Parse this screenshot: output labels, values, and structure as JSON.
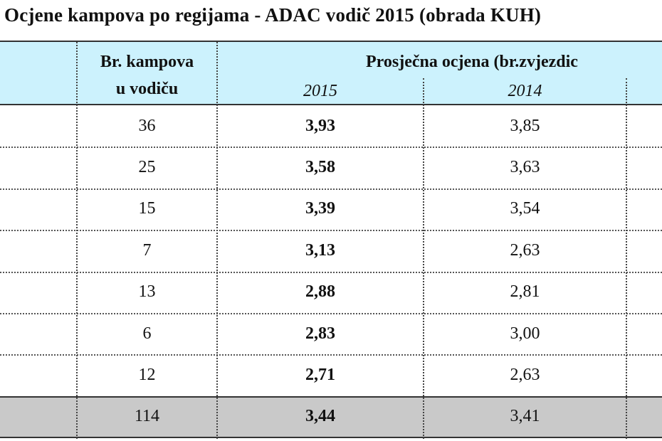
{
  "title": "Ocjene kampova po regijama - ADAC vodič 2015 (obrada KUH)",
  "table": {
    "header": {
      "count": [
        "Br. kampova",
        "u vodiču"
      ],
      "rating": "Prosječna ocjena (br.zvjezdic",
      "years": [
        "2015",
        "2014"
      ]
    },
    "rows": [
      [
        "36",
        "3,93",
        "3,85"
      ],
      [
        "25",
        "3,58",
        "3,63"
      ],
      [
        "15",
        "3,39",
        "3,54"
      ],
      [
        "7",
        "3,13",
        "2,63"
      ],
      [
        "13",
        "2,88",
        "2,81"
      ],
      [
        "6",
        "2,83",
        "3,00"
      ],
      [
        "12",
        "2,71",
        "2,63"
      ]
    ],
    "total": [
      "114",
      "3,44",
      "3,41"
    ]
  }
}
